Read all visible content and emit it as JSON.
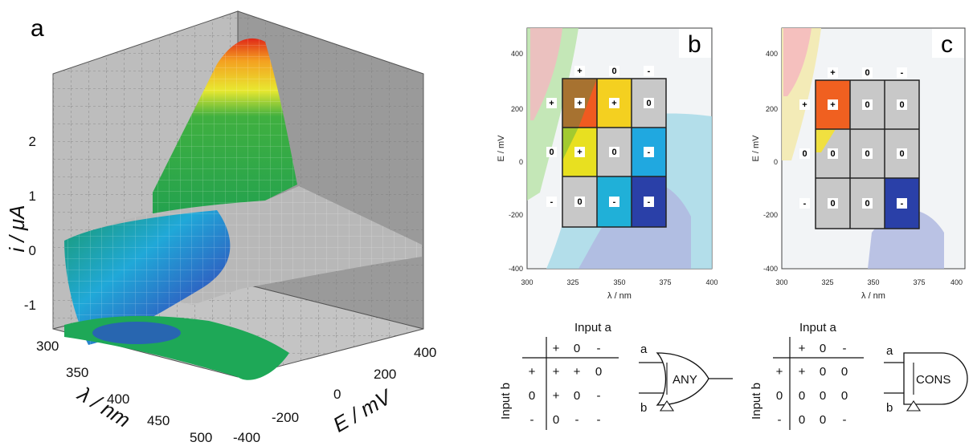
{
  "panel_a": {
    "letter": "a",
    "z_axis_label": "i / μA",
    "z_ticks": [
      "2",
      "1",
      "0",
      "-1"
    ],
    "lambda_axis_label": "λ / nm",
    "lambda_ticks": [
      "300",
      "350",
      "400",
      "450",
      "500"
    ],
    "e_axis_label": "E / mV",
    "e_ticks": [
      "400",
      "200",
      "0",
      "-200",
      "-400"
    ]
  },
  "panel_b": {
    "letter": "b",
    "y_axis_label": "E / mV",
    "x_axis_label": "λ / nm",
    "y_ticks": [
      "400",
      "200",
      "0",
      "-200",
      "-400"
    ],
    "x_ticks": [
      "300",
      "325",
      "350",
      "375",
      "400"
    ],
    "col_headers": [
      "+",
      "0",
      "-"
    ],
    "row_headers": [
      "+",
      "0",
      "-"
    ],
    "cells": [
      [
        "+",
        "+",
        "0"
      ],
      [
        "+",
        "0",
        "-"
      ],
      [
        "0",
        "-",
        "-"
      ]
    ]
  },
  "panel_c": {
    "letter": "c",
    "y_axis_label": "E / mV",
    "x_axis_label": "λ / nm",
    "y_ticks": [
      "400",
      "200",
      "0",
      "-200",
      "-400"
    ],
    "x_ticks": [
      "300",
      "325",
      "350",
      "375",
      "400"
    ],
    "col_headers": [
      "+",
      "0",
      "-"
    ],
    "row_headers": [
      "+",
      "0",
      "-"
    ],
    "cells": [
      [
        "+",
        "0",
        "0"
      ],
      [
        "0",
        "0",
        "0"
      ],
      [
        "0",
        "0",
        "-"
      ]
    ]
  },
  "table_b": {
    "title": "Input a",
    "side_label": "Input b",
    "col_headers": [
      "+",
      "0",
      "-"
    ],
    "rows": [
      {
        "head": "+",
        "cells": [
          "+",
          "+",
          "0"
        ]
      },
      {
        "head": "0",
        "cells": [
          "+",
          "0",
          "-"
        ]
      },
      {
        "head": "-",
        "cells": [
          "0",
          "-",
          "-"
        ]
      }
    ]
  },
  "table_c": {
    "title": "Input a",
    "side_label": "Input b",
    "col_headers": [
      "+",
      "0",
      "-"
    ],
    "rows": [
      {
        "head": "+",
        "cells": [
          "+",
          "0",
          "0"
        ]
      },
      {
        "head": "0",
        "cells": [
          "0",
          "0",
          "0"
        ]
      },
      {
        "head": "-",
        "cells": [
          "0",
          "0",
          "-"
        ]
      }
    ]
  },
  "gate_b": {
    "label": "ANY",
    "input_top": "a",
    "input_bottom": "b",
    "shape": "or-gate"
  },
  "gate_c": {
    "label": "CONS",
    "input_top": "a",
    "input_bottom": "b",
    "shape": "and-gate"
  }
}
